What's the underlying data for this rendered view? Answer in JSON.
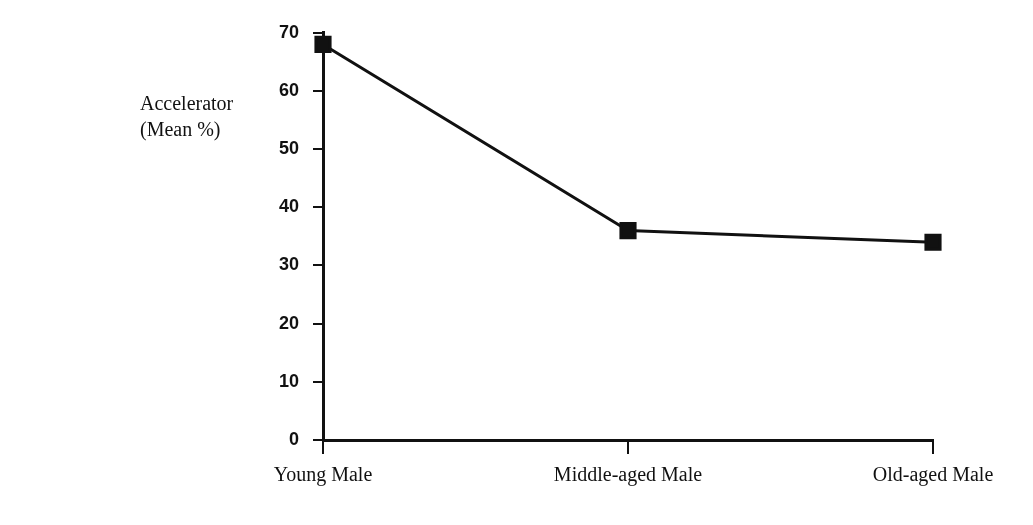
{
  "chart_data": {
    "type": "line",
    "ylabel": "Accelerator (Mean %)",
    "categories": [
      "Young Male",
      "Middle-aged Male",
      "Old-aged Male"
    ],
    "series": [
      {
        "color": "#111111",
        "values": [
          68,
          36,
          34
        ]
      }
    ],
    "ylim": [
      0,
      70
    ],
    "yticks": [
      0,
      10,
      20,
      30,
      40,
      50,
      60,
      70
    ],
    "grid": false,
    "legend": false,
    "marker": "square",
    "line_style": "solid"
  }
}
